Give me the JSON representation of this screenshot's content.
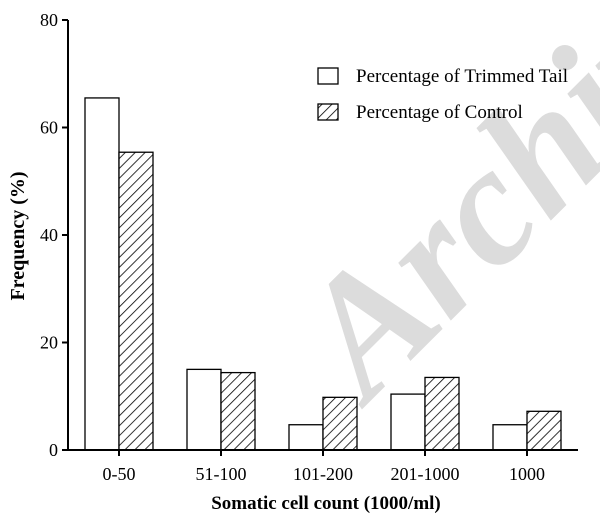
{
  "watermark": "Archive",
  "chart_data": {
    "type": "bar",
    "categories": [
      "0-50",
      "51-100",
      "101-200",
      "201-1000",
      "1000"
    ],
    "series": [
      {
        "name": "Percentage of Trimmed Tail",
        "values": [
          65.5,
          15.0,
          4.7,
          10.4,
          4.7
        ],
        "pattern": "open"
      },
      {
        "name": "Percentage of Control",
        "values": [
          55.4,
          14.4,
          9.8,
          13.5,
          7.2
        ],
        "pattern": "hatched"
      }
    ],
    "title": "",
    "xlabel": "Somatic cell count (1000/ml)",
    "ylabel": "Frequency (%)",
    "ylim": [
      0,
      80
    ],
    "yticks": [
      0,
      20,
      40,
      60,
      80
    ],
    "grid": false,
    "legend_position": "top-right",
    "colors": {
      "bar_fill": "#ffffff",
      "bar_stroke": "#000000",
      "hatch": "#000000",
      "watermark": "#dcdcdc"
    }
  }
}
